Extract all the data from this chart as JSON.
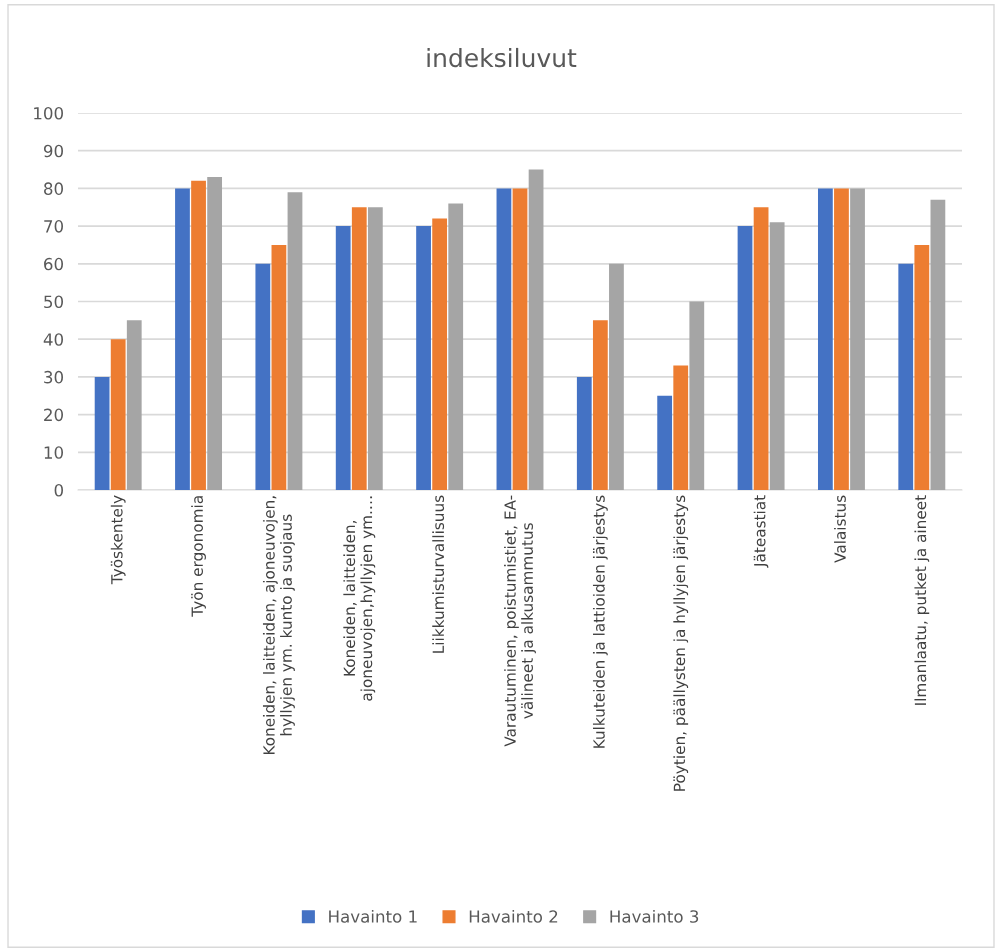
{
  "chart_data": {
    "type": "bar",
    "title": "indeksiluvut",
    "categories": [
      "Työskentely",
      "Työn ergonomia",
      "Koneiden, laitteiden, ajoneuvojen,\nhyllyjen ym. kunto ja suojaus",
      "Koneiden, laitteiden,\najoneuvojen,hyllyjen ym.…",
      "Liikkumisturvallisuus",
      "Varautuminen, poistumistiet, EA-\nvälineet ja alkusammutus",
      "Kulkuteiden ja lattioiden järjestys",
      "Pöytien, päällysten ja hyllyjen järjestys",
      "Jäteastiat",
      "Valaistus",
      "Ilmanlaatu, putket ja aineet"
    ],
    "series": [
      {
        "name": "Havainto 1",
        "color": "#4472c4",
        "values": [
          30,
          80,
          60,
          70,
          70,
          80,
          30,
          25,
          70,
          80,
          60
        ]
      },
      {
        "name": "Havainto 2",
        "color": "#ed7d31",
        "values": [
          40,
          82,
          65,
          75,
          72,
          80,
          45,
          33,
          75,
          80,
          65
        ]
      },
      {
        "name": "Havainto 3",
        "color": "#a5a5a5",
        "values": [
          45,
          83,
          79,
          75,
          76,
          85,
          60,
          50,
          71,
          80,
          77
        ]
      }
    ],
    "ylim": [
      0,
      100
    ],
    "yticks": [
      0,
      10,
      20,
      30,
      40,
      50,
      60,
      70,
      80,
      90,
      100
    ],
    "grid": "y",
    "legend": "bottom"
  }
}
